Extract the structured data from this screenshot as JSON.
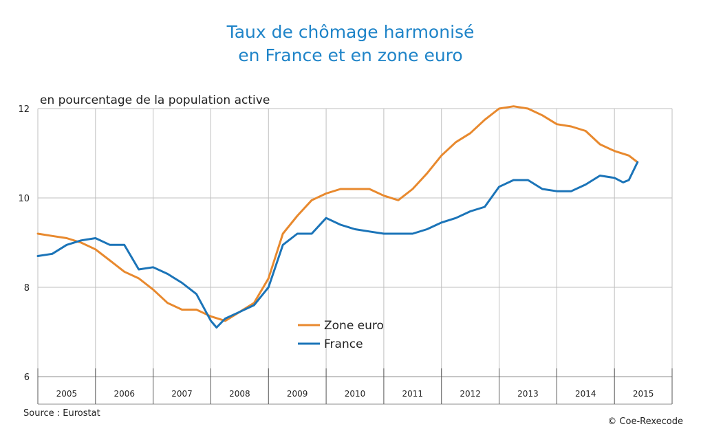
{
  "chart_data": {
    "type": "line",
    "title_line1": "Taux de chômage harmonisé",
    "title_line2": "en France et en zone euro",
    "ylabel": "en pourcentage de la population active",
    "ylim": [
      6,
      12
    ],
    "yticks": [
      "6",
      "8",
      "10",
      "12"
    ],
    "categories": [
      "2005",
      "2006",
      "2007",
      "2008",
      "2009",
      "2010",
      "2011",
      "2012",
      "2013",
      "2014",
      "2015"
    ],
    "xlim": [
      2005.0,
      2016.0
    ],
    "grid": true,
    "legend_position": "center-bottom",
    "series": [
      {
        "name": "Zone euro",
        "color": "#e8892e",
        "points": [
          [
            2005.0,
            9.2
          ],
          [
            2005.25,
            9.15
          ],
          [
            2005.5,
            9.1
          ],
          [
            2005.75,
            9.0
          ],
          [
            2006.0,
            8.85
          ],
          [
            2006.25,
            8.6
          ],
          [
            2006.5,
            8.35
          ],
          [
            2006.75,
            8.2
          ],
          [
            2007.0,
            7.95
          ],
          [
            2007.25,
            7.65
          ],
          [
            2007.5,
            7.5
          ],
          [
            2007.75,
            7.5
          ],
          [
            2008.0,
            7.35
          ],
          [
            2008.25,
            7.25
          ],
          [
            2008.5,
            7.45
          ],
          [
            2008.75,
            7.65
          ],
          [
            2009.0,
            8.2
          ],
          [
            2009.25,
            9.2
          ],
          [
            2009.5,
            9.6
          ],
          [
            2009.75,
            9.95
          ],
          [
            2010.0,
            10.1
          ],
          [
            2010.25,
            10.2
          ],
          [
            2010.5,
            10.2
          ],
          [
            2010.75,
            10.2
          ],
          [
            2011.0,
            10.05
          ],
          [
            2011.25,
            9.95
          ],
          [
            2011.5,
            10.2
          ],
          [
            2011.75,
            10.55
          ],
          [
            2012.0,
            10.95
          ],
          [
            2012.25,
            11.25
          ],
          [
            2012.5,
            11.45
          ],
          [
            2012.75,
            11.75
          ],
          [
            2013.0,
            12.0
          ],
          [
            2013.25,
            12.05
          ],
          [
            2013.5,
            12.0
          ],
          [
            2013.75,
            11.85
          ],
          [
            2014.0,
            11.65
          ],
          [
            2014.25,
            11.6
          ],
          [
            2014.5,
            11.5
          ],
          [
            2014.75,
            11.2
          ],
          [
            2015.0,
            11.05
          ],
          [
            2015.25,
            10.95
          ],
          [
            2015.4,
            10.8
          ]
        ]
      },
      {
        "name": "France",
        "color": "#1b74b8",
        "points": [
          [
            2005.0,
            8.7
          ],
          [
            2005.25,
            8.75
          ],
          [
            2005.5,
            8.95
          ],
          [
            2005.75,
            9.05
          ],
          [
            2006.0,
            9.1
          ],
          [
            2006.25,
            8.95
          ],
          [
            2006.5,
            8.95
          ],
          [
            2006.75,
            8.4
          ],
          [
            2007.0,
            8.45
          ],
          [
            2007.25,
            8.3
          ],
          [
            2007.5,
            8.1
          ],
          [
            2007.75,
            7.85
          ],
          [
            2008.0,
            7.25
          ],
          [
            2008.1,
            7.1
          ],
          [
            2008.25,
            7.3
          ],
          [
            2008.5,
            7.45
          ],
          [
            2008.75,
            7.6
          ],
          [
            2009.0,
            8.0
          ],
          [
            2009.25,
            8.95
          ],
          [
            2009.5,
            9.2
          ],
          [
            2009.75,
            9.2
          ],
          [
            2010.0,
            9.55
          ],
          [
            2010.25,
            9.4
          ],
          [
            2010.5,
            9.3
          ],
          [
            2010.75,
            9.25
          ],
          [
            2011.0,
            9.2
          ],
          [
            2011.25,
            9.2
          ],
          [
            2011.5,
            9.2
          ],
          [
            2011.75,
            9.3
          ],
          [
            2012.0,
            9.45
          ],
          [
            2012.25,
            9.55
          ],
          [
            2012.5,
            9.7
          ],
          [
            2012.75,
            9.8
          ],
          [
            2013.0,
            10.25
          ],
          [
            2013.25,
            10.4
          ],
          [
            2013.5,
            10.4
          ],
          [
            2013.75,
            10.2
          ],
          [
            2014.0,
            10.15
          ],
          [
            2014.25,
            10.15
          ],
          [
            2014.5,
            10.3
          ],
          [
            2014.75,
            10.5
          ],
          [
            2015.0,
            10.45
          ],
          [
            2015.15,
            10.35
          ],
          [
            2015.25,
            10.4
          ],
          [
            2015.4,
            10.8
          ]
        ]
      }
    ]
  },
  "footer": {
    "source": "Source : Eurostat",
    "copyright": "© Coe-Rexecode"
  }
}
